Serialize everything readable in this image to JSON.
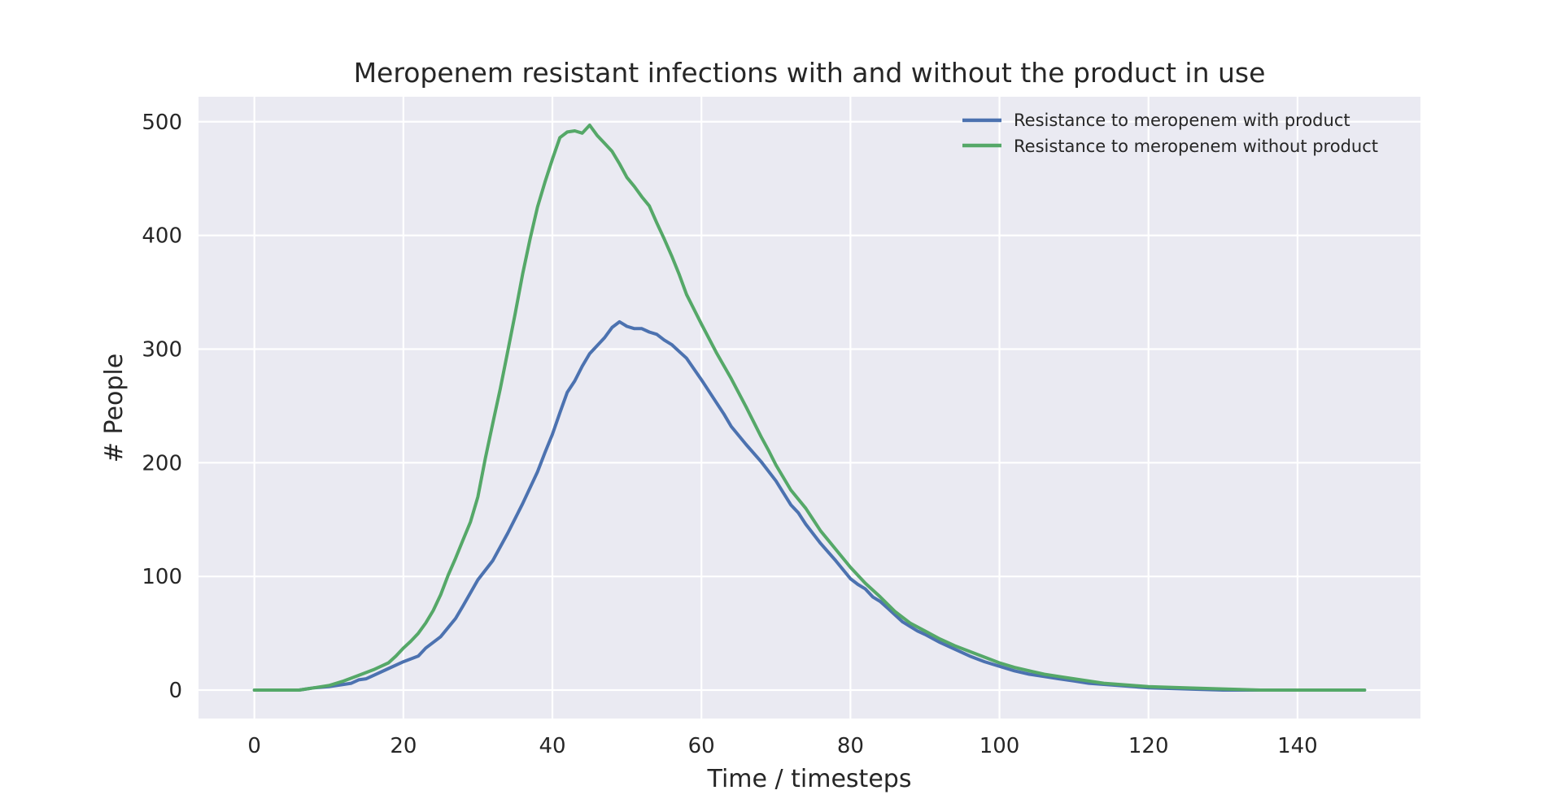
{
  "chart_data": {
    "type": "line",
    "title": "Meropenem resistant infections with and without the product in use",
    "xlabel": "Time / timesteps",
    "ylabel": "# People",
    "xlim": [
      -7.5,
      156.5
    ],
    "ylim": [
      -25,
      522
    ],
    "xticks": [
      0,
      20,
      40,
      60,
      80,
      100,
      120,
      140
    ],
    "yticks": [
      0,
      100,
      200,
      300,
      400,
      500
    ],
    "grid": true,
    "legend_position": "top-right",
    "background": "#eaeaf2",
    "series": [
      {
        "name": "Resistance to meropenem with product",
        "color": "#4c72b0",
        "x": [
          0,
          6,
          8,
          10,
          12,
          13,
          14,
          15,
          16,
          18,
          20,
          22,
          23,
          25,
          26,
          27,
          28,
          30,
          32,
          34,
          36,
          38,
          39,
          40,
          41,
          42,
          43,
          44,
          45,
          46,
          47,
          48,
          49,
          50,
          51,
          52,
          53,
          54,
          55,
          56,
          57,
          58,
          60,
          62,
          63,
          64,
          66,
          68,
          70,
          72,
          73,
          74,
          76,
          78,
          80,
          81,
          82,
          83,
          84,
          85,
          86,
          87,
          88,
          89,
          90,
          92,
          94,
          96,
          98,
          100,
          102,
          104,
          106,
          108,
          110,
          112,
          114,
          116,
          118,
          120,
          125,
          130,
          135,
          140,
          145,
          149
        ],
        "y": [
          0,
          0,
          2,
          3,
          5,
          6,
          9,
          10,
          13,
          19,
          25,
          30,
          37,
          47,
          55,
          63,
          74,
          97,
          114,
          138,
          164,
          192,
          209,
          225,
          244,
          262,
          272,
          285,
          296,
          303,
          310,
          319,
          324,
          320,
          318,
          318,
          315,
          313,
          308,
          304,
          298,
          292,
          273,
          253,
          243,
          232,
          216,
          201,
          184,
          163,
          156,
          146,
          129,
          114,
          98,
          93,
          89,
          82,
          78,
          72,
          66,
          60,
          56,
          52,
          49,
          42,
          36,
          30,
          25,
          21,
          17,
          14,
          12,
          10,
          8,
          6,
          5,
          4,
          3,
          2,
          1,
          0,
          0,
          0,
          0,
          0
        ]
      },
      {
        "name": "Resistance to meropenem without product",
        "color": "#55a868",
        "x": [
          0,
          6,
          8,
          10,
          12,
          14,
          16,
          17,
          18,
          19,
          20,
          21,
          22,
          23,
          24,
          25,
          26,
          27,
          28,
          29,
          30,
          31,
          32,
          33,
          34,
          35,
          36,
          37,
          38,
          39,
          40,
          41,
          42,
          43,
          44,
          45,
          46,
          47,
          48,
          49,
          50,
          51,
          52,
          53,
          54,
          55,
          56,
          57,
          58,
          60,
          62,
          64,
          66,
          68,
          69,
          70,
          72,
          74,
          76,
          78,
          80,
          82,
          84,
          86,
          88,
          90,
          92,
          94,
          96,
          98,
          100,
          102,
          104,
          106,
          108,
          110,
          112,
          114,
          116,
          118,
          120,
          125,
          130,
          135,
          140,
          145,
          149
        ],
        "y": [
          0,
          0,
          2,
          4,
          8,
          13,
          18,
          21,
          24,
          30,
          37,
          43,
          50,
          59,
          70,
          84,
          101,
          116,
          132,
          148,
          170,
          204,
          235,
          265,
          298,
          331,
          366,
          397,
          425,
          447,
          467,
          486,
          491,
          492,
          490,
          497,
          488,
          481,
          474,
          463,
          451,
          443,
          434,
          426,
          411,
          397,
          382,
          366,
          348,
          322,
          297,
          274,
          249,
          223,
          211,
          198,
          176,
          160,
          140,
          124,
          108,
          94,
          82,
          69,
          59,
          52,
          45,
          39,
          34,
          29,
          24,
          20,
          17,
          14,
          12,
          10,
          8,
          6,
          5,
          4,
          3,
          2,
          1,
          0,
          0,
          0,
          0
        ]
      }
    ]
  }
}
